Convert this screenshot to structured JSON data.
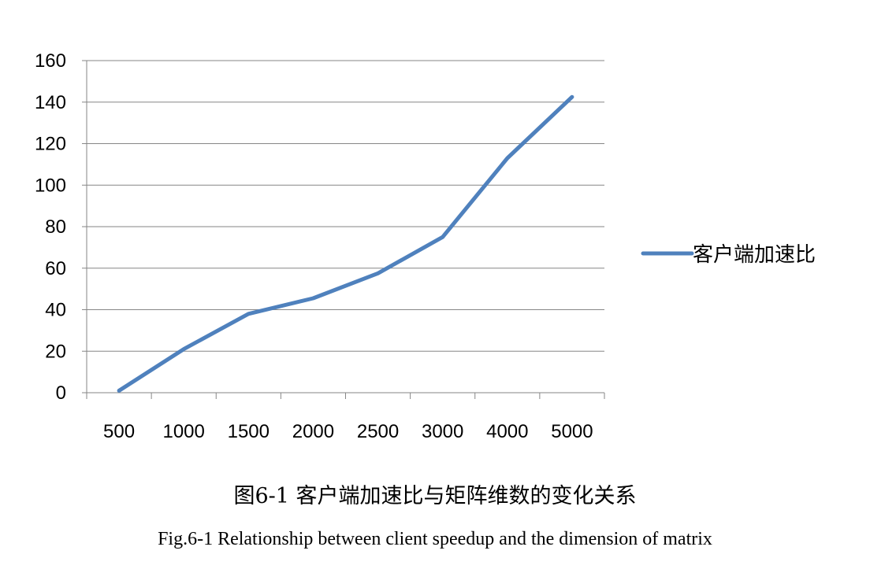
{
  "chart_data": {
    "type": "line",
    "categories": [
      "500",
      "1000",
      "1500",
      "2000",
      "2500",
      "3000",
      "4000",
      "5000"
    ],
    "series": [
      {
        "name": "客户端加速比",
        "values": [
          1,
          21,
          38,
          45.5,
          57.5,
          75,
          113,
          142.5
        ],
        "color": "#4f81bd"
      }
    ],
    "ylim": [
      0,
      160
    ],
    "yticks": [
      0,
      20,
      40,
      60,
      80,
      100,
      120,
      140,
      160
    ],
    "grid": true,
    "legend": "right"
  },
  "caption": {
    "cn": "图6-1  客户端加速比与矩阵维数的变化关系",
    "en": "Fig.6-1 Relationship between client speedup and the dimension of matrix"
  }
}
